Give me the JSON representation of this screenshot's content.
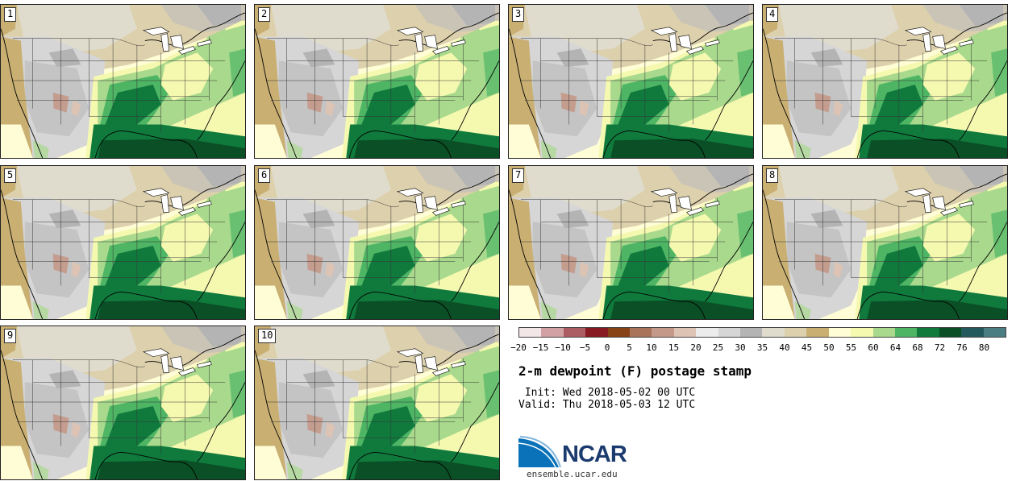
{
  "panels": [
    {
      "member": "1"
    },
    {
      "member": "2"
    },
    {
      "member": "3"
    },
    {
      "member": "4"
    },
    {
      "member": "5"
    },
    {
      "member": "6"
    },
    {
      "member": "7"
    },
    {
      "member": "8"
    },
    {
      "member": "9"
    },
    {
      "member": "10"
    }
  ],
  "colorbar": {
    "colors": [
      "#f3e6e6",
      "#d2a1a3",
      "#ac5d63",
      "#871a22",
      "#874216",
      "#a9725a",
      "#c4998a",
      "#dcc3b4",
      "#ececec",
      "#d6d6d6",
      "#b4b4b4",
      "#e0dccd",
      "#ddd0ac",
      "#c9af72",
      "#fffdd6",
      "#f5f9b0",
      "#a8d98c",
      "#4eb565",
      "#107a3d",
      "#0a4f25",
      "#245a5e",
      "#4b7e82"
    ],
    "ticks": [
      "−20",
      "−15",
      "−10",
      "−5",
      "0",
      "5",
      "10",
      "15",
      "20",
      "25",
      "30",
      "35",
      "40",
      "45",
      "50",
      "55",
      "60",
      "64",
      "68",
      "72",
      "76",
      "80"
    ]
  },
  "title": "2-m dewpoint (F) postage stamp",
  "init_line": " Init: Wed 2018-05-02 00 UTC",
  "valid_line": "Valid: Thu 2018-05-03 12 UTC",
  "logo": {
    "name": "NCAR",
    "site": "ensemble.ucar.edu"
  }
}
